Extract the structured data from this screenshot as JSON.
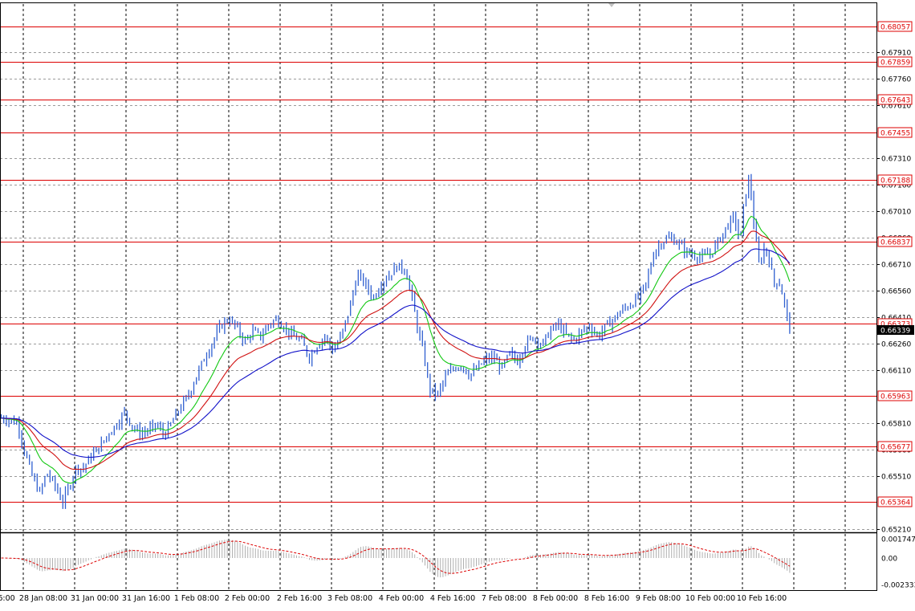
{
  "chart_data": {
    "type": "candlestick",
    "colors": {
      "bars": "#2f5fd0",
      "ma_fast": "#12c812",
      "ma_mid": "#d01010",
      "ma_slow": "#1010c8",
      "level_lines": "#dd0000",
      "grid": "#9a9a9a",
      "oscillator_histogram": "#b0b0b0",
      "oscillator_signal": "#dd0000"
    },
    "price_axis": {
      "range": [
        0.65195,
        0.68185
      ],
      "ticks": [
        "0.67910",
        "0.67760",
        "0.67610",
        "0.67310",
        "0.67160",
        "0.67010",
        "0.66860",
        "0.66710",
        "0.66560",
        "0.66410",
        "0.66260",
        "0.66110",
        "0.65810",
        "0.65660",
        "0.65510",
        "0.65210"
      ],
      "current_price": "0.66339"
    },
    "levels": [
      "0.68057",
      "0.67859",
      "0.67643",
      "0.67455",
      "0.67188",
      "0.66837",
      "0.66373",
      "0.65963",
      "0.65677",
      "0.65364"
    ],
    "time_axis": {
      "labels": [
        "6:00",
        "28 Jan 08:00",
        "31 Jan 00:00",
        "31 Jan 16:00",
        "1 Feb 08:00",
        "2 Feb 00:00",
        "2 Feb 16:00",
        "3 Feb 08:00",
        "4 Feb 00:00",
        "4 Feb 16:00",
        "7 Feb 08:00",
        "8 Feb 00:00",
        "8 Feb 16:00",
        "9 Feb 08:00",
        "10 Feb 00:00",
        "10 Feb 16:00"
      ]
    },
    "price_path": [
      [
        0,
        0.6584
      ],
      [
        10,
        0.6583
      ],
      [
        22,
        0.6581
      ],
      [
        30,
        0.6566
      ],
      [
        40,
        0.6551
      ],
      [
        50,
        0.6541
      ],
      [
        58,
        0.6553
      ],
      [
        68,
        0.6546
      ],
      [
        78,
        0.6536
      ],
      [
        88,
        0.6547
      ],
      [
        95,
        0.6556
      ],
      [
        103,
        0.6555
      ],
      [
        115,
        0.6563
      ],
      [
        125,
        0.6568
      ],
      [
        135,
        0.6575
      ],
      [
        145,
        0.658
      ],
      [
        155,
        0.6587
      ],
      [
        165,
        0.6579
      ],
      [
        175,
        0.6575
      ],
      [
        185,
        0.6577
      ],
      [
        195,
        0.658
      ],
      [
        205,
        0.6574
      ],
      [
        215,
        0.6582
      ],
      [
        225,
        0.659
      ],
      [
        235,
        0.6597
      ],
      [
        245,
        0.6608
      ],
      [
        255,
        0.6618
      ],
      [
        265,
        0.6627
      ],
      [
        275,
        0.6636
      ],
      [
        285,
        0.664
      ],
      [
        295,
        0.6635
      ],
      [
        305,
        0.6627
      ],
      [
        315,
        0.6633
      ],
      [
        325,
        0.663
      ],
      [
        335,
        0.6637
      ],
      [
        345,
        0.664
      ],
      [
        355,
        0.6635
      ],
      [
        365,
        0.663
      ],
      [
        375,
        0.6628
      ],
      [
        385,
        0.6618
      ],
      [
        395,
        0.6625
      ],
      [
        405,
        0.663
      ],
      [
        415,
        0.6622
      ],
      [
        425,
        0.663
      ],
      [
        435,
        0.6645
      ],
      [
        445,
        0.6665
      ],
      [
        455,
        0.666
      ],
      [
        465,
        0.6652
      ],
      [
        475,
        0.666
      ],
      [
        485,
        0.6665
      ],
      [
        495,
        0.667
      ],
      [
        505,
        0.6668
      ],
      [
        512,
        0.6655
      ],
      [
        520,
        0.6635
      ],
      [
        528,
        0.662
      ],
      [
        535,
        0.66
      ],
      [
        545,
        0.6597
      ],
      [
        555,
        0.6607
      ],
      [
        565,
        0.6612
      ],
      [
        575,
        0.6614
      ],
      [
        585,
        0.6608
      ],
      [
        595,
        0.6612
      ],
      [
        605,
        0.6617
      ],
      [
        615,
        0.6618
      ],
      [
        625,
        0.6612
      ],
      [
        635,
        0.662
      ],
      [
        645,
        0.6616
      ],
      [
        655,
        0.6626
      ],
      [
        665,
        0.663
      ],
      [
        675,
        0.6625
      ],
      [
        685,
        0.6633
      ],
      [
        695,
        0.6637
      ],
      [
        705,
        0.6631
      ],
      [
        715,
        0.6628
      ],
      [
        725,
        0.6633
      ],
      [
        735,
        0.6636
      ],
      [
        745,
        0.663
      ],
      [
        755,
        0.6636
      ],
      [
        765,
        0.664
      ],
      [
        775,
        0.6645
      ],
      [
        785,
        0.6648
      ],
      [
        795,
        0.6652
      ],
      [
        805,
        0.666
      ],
      [
        815,
        0.6678
      ],
      [
        825,
        0.6684
      ],
      [
        835,
        0.6686
      ],
      [
        845,
        0.6683
      ],
      [
        855,
        0.6678
      ],
      [
        865,
        0.6676
      ],
      [
        875,
        0.6675
      ],
      [
        885,
        0.6677
      ],
      [
        895,
        0.6684
      ],
      [
        905,
        0.6692
      ],
      [
        915,
        0.6698
      ],
      [
        922,
        0.6683
      ],
      [
        928,
        0.671
      ],
      [
        934,
        0.672
      ],
      [
        940,
        0.669
      ],
      [
        946,
        0.667
      ],
      [
        952,
        0.668
      ],
      [
        958,
        0.6675
      ],
      [
        964,
        0.666
      ],
      [
        970,
        0.6662
      ],
      [
        976,
        0.6652
      ],
      [
        981,
        0.664
      ],
      [
        986,
        0.66339
      ]
    ],
    "moving_averages": [
      "fast (green)",
      "mid (red)",
      "slow (blue)"
    ],
    "oscillator": {
      "ticks": [
        "0.001747",
        "0.00",
        "-0.002333"
      ],
      "range": [
        -0.002333,
        0.001747
      ]
    }
  }
}
